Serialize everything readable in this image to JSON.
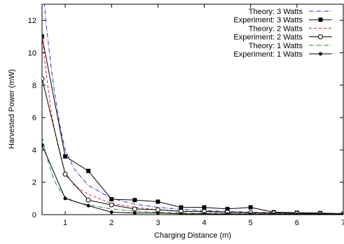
{
  "chart_data": {
    "type": "line",
    "title": "",
    "xlabel": "Charging Distance (m)",
    "ylabel": "Harvested Power (mW)",
    "xlim": [
      0.5,
      7
    ],
    "ylim": [
      0,
      13
    ],
    "xticks": [
      1,
      2,
      3,
      4,
      5,
      6,
      7
    ],
    "yticks": [
      0,
      2,
      4,
      6,
      8,
      10,
      12
    ],
    "grid": false,
    "legend_position": "top-right",
    "series": [
      {
        "name": "Theory: 3 Watts",
        "style": "dash-dot",
        "color": "#2f2fb8",
        "marker": "none",
        "x": [
          0.5,
          0.55,
          0.6,
          0.7,
          0.8,
          0.9,
          1.0,
          1.2,
          1.5,
          2.0,
          2.5,
          3.0,
          3.5,
          4.0,
          4.5,
          5.0,
          5.5,
          6.0,
          6.5,
          7.0
        ],
        "y": [
          15.0,
          13.0,
          11.5,
          9.0,
          7.0,
          5.3,
          4.0,
          2.8,
          1.8,
          1.0,
          0.65,
          0.45,
          0.33,
          0.25,
          0.2,
          0.15,
          0.12,
          0.1,
          0.09,
          0.08
        ]
      },
      {
        "name": "Experiment: 3 Watts",
        "style": "solid",
        "color": "#000000",
        "marker": "square",
        "x": [
          0.5,
          1.0,
          1.5,
          2.0,
          2.5,
          3.0,
          3.5,
          4.0,
          4.5,
          5.0,
          5.5,
          6.0,
          6.5,
          7.0
        ],
        "y": [
          11.0,
          3.6,
          2.7,
          0.95,
          0.9,
          0.8,
          0.45,
          0.45,
          0.35,
          0.45,
          0.15,
          0.12,
          0.1,
          0.05
        ]
      },
      {
        "name": "Theory: 2 Watts",
        "style": "dashed",
        "color": "#e8202a",
        "marker": "none",
        "x": [
          0.5,
          0.6,
          0.7,
          0.8,
          0.9,
          1.0,
          1.2,
          1.5,
          2.0,
          2.5,
          3.0,
          3.5,
          4.0,
          4.5,
          5.0,
          5.5,
          6.0,
          6.5,
          7.0
        ],
        "y": [
          11.0,
          8.5,
          6.3,
          4.8,
          3.6,
          2.6,
          1.8,
          1.25,
          0.7,
          0.45,
          0.3,
          0.22,
          0.17,
          0.13,
          0.1,
          0.08,
          0.07,
          0.06,
          0.05
        ]
      },
      {
        "name": "Experiment: 2 Watts",
        "style": "solid",
        "color": "#000000",
        "marker": "circle-open",
        "x": [
          0.5,
          1.0,
          1.5,
          2.0,
          2.5,
          3.0,
          3.5,
          4.0,
          4.5,
          5.0,
          5.5,
          6.0,
          6.5,
          7.0
        ],
        "y": [
          8.4,
          2.5,
          0.9,
          0.6,
          0.35,
          0.3,
          0.2,
          0.2,
          0.15,
          0.12,
          0.1,
          0.08,
          0.06,
          0.05
        ]
      },
      {
        "name": "Theory: 1 Watts",
        "style": "dash-dot",
        "color": "#1a8a2a",
        "marker": "none",
        "x": [
          0.5,
          0.6,
          0.7,
          0.8,
          0.9,
          1.0,
          1.2,
          1.5,
          2.0,
          2.5,
          3.0,
          3.5,
          4.0,
          4.5,
          5.0,
          5.5,
          6.0,
          6.5,
          7.0
        ],
        "y": [
          4.8,
          3.6,
          2.6,
          1.9,
          1.45,
          1.1,
          0.8,
          0.6,
          0.35,
          0.22,
          0.15,
          0.11,
          0.08,
          0.06,
          0.05,
          0.04,
          0.035,
          0.03,
          0.025
        ]
      },
      {
        "name": "Experiment: 1 Watts",
        "style": "solid",
        "color": "#000000",
        "marker": "circle-filled",
        "x": [
          0.5,
          1.0,
          1.5,
          2.0,
          2.5,
          3.0,
          3.5,
          4.0,
          4.5,
          5.0,
          5.5,
          6.0,
          6.5,
          7.0
        ],
        "y": [
          4.3,
          1.0,
          0.55,
          0.15,
          0.1,
          0.1,
          0.05,
          0.05,
          0.04,
          0.03,
          0.03,
          0.02,
          0.02,
          0.02
        ]
      }
    ]
  }
}
